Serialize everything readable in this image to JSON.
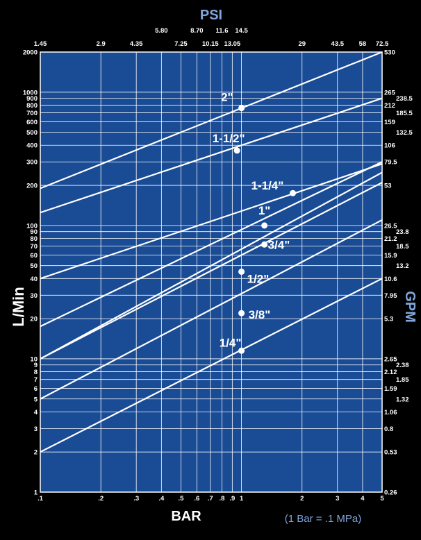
{
  "chart_data": {
    "type": "line",
    "scale": "log-log",
    "grid": true,
    "top_axis": {
      "title": "PSI",
      "ticks": [
        {
          "label": "1.45",
          "bar": 0.1
        },
        {
          "label": "2.9",
          "bar": 0.2
        },
        {
          "label": "4.35",
          "bar": 0.3
        },
        {
          "label": "5.80",
          "bar": 0.4
        },
        {
          "label": "7.25",
          "bar": 0.5
        },
        {
          "label": "8.70",
          "bar": 0.6
        },
        {
          "label": "10.15",
          "bar": 0.7
        },
        {
          "label": "11.6",
          "bar": 0.8
        },
        {
          "label": "13.05",
          "bar": 0.9
        },
        {
          "label": "14.5",
          "bar": 1.0
        },
        {
          "label": "29",
          "bar": 2
        },
        {
          "label": "43.5",
          "bar": 3
        },
        {
          "label": "58",
          "bar": 4
        },
        {
          "label": "72.5",
          "bar": 5
        }
      ]
    },
    "bottom_axis": {
      "title": "BAR",
      "note": "(1 Bar = .1 MPa)",
      "range": [
        0.1,
        5
      ],
      "ticks": [
        {
          "label": ".1",
          "value": 0.1
        },
        {
          "label": ".2",
          "value": 0.2
        },
        {
          "label": ".3",
          "value": 0.3
        },
        {
          "label": ".4",
          "value": 0.4
        },
        {
          "label": ".5",
          "value": 0.5
        },
        {
          "label": ".6",
          "value": 0.6
        },
        {
          "label": ".7",
          "value": 0.7
        },
        {
          "label": ".8",
          "value": 0.8
        },
        {
          "label": ".9",
          "value": 0.9
        },
        {
          "label": "1",
          "value": 1
        },
        {
          "label": "2",
          "value": 2
        },
        {
          "label": "3",
          "value": 3
        },
        {
          "label": "4",
          "value": 4
        },
        {
          "label": "5",
          "value": 5
        }
      ]
    },
    "left_axis": {
      "title": "L/Min",
      "range": [
        1,
        2000
      ],
      "ticks": [
        {
          "label": "1",
          "value": 1
        },
        {
          "label": "2",
          "value": 2
        },
        {
          "label": "3",
          "value": 3
        },
        {
          "label": "4",
          "value": 4
        },
        {
          "label": "5",
          "value": 5
        },
        {
          "label": "6",
          "value": 6
        },
        {
          "label": "7",
          "value": 7
        },
        {
          "label": "8",
          "value": 8
        },
        {
          "label": "9",
          "value": 9
        },
        {
          "label": "10",
          "value": 10
        },
        {
          "label": "20",
          "value": 20
        },
        {
          "label": "30",
          "value": 30
        },
        {
          "label": "40",
          "value": 40
        },
        {
          "label": "50",
          "value": 50
        },
        {
          "label": "60",
          "value": 60
        },
        {
          "label": "70",
          "value": 70
        },
        {
          "label": "80",
          "value": 80
        },
        {
          "label": "90",
          "value": 90
        },
        {
          "label": "100",
          "value": 100
        },
        {
          "label": "200",
          "value": 200
        },
        {
          "label": "300",
          "value": 300
        },
        {
          "label": "400",
          "value": 400
        },
        {
          "label": "500",
          "value": 500
        },
        {
          "label": "600",
          "value": 600
        },
        {
          "label": "700",
          "value": 700
        },
        {
          "label": "800",
          "value": 800
        },
        {
          "label": "900",
          "value": 900
        },
        {
          "label": "1000",
          "value": 1000
        },
        {
          "label": "2000",
          "value": 2000
        }
      ]
    },
    "right_axis": {
      "title": "GPM",
      "ticks": [
        {
          "label": "530",
          "lmin": 2000
        },
        {
          "label": "265",
          "lmin": 1000
        },
        {
          "label": "238.5",
          "lmin": 900
        },
        {
          "label": "212",
          "lmin": 800
        },
        {
          "label": "185.5",
          "lmin": 700
        },
        {
          "label": "159",
          "lmin": 600
        },
        {
          "label": "132.5",
          "lmin": 500
        },
        {
          "label": "106",
          "lmin": 400
        },
        {
          "label": "79.5",
          "lmin": 300
        },
        {
          "label": "53",
          "lmin": 200
        },
        {
          "label": "26.5",
          "lmin": 100
        },
        {
          "label": "23.8",
          "lmin": 90
        },
        {
          "label": "21.2",
          "lmin": 80
        },
        {
          "label": "18.5",
          "lmin": 70
        },
        {
          "label": "15.9",
          "lmin": 60
        },
        {
          "label": "13.2",
          "lmin": 50
        },
        {
          "label": "10.6",
          "lmin": 40
        },
        {
          "label": "7.95",
          "lmin": 30
        },
        {
          "label": "5.3",
          "lmin": 20
        },
        {
          "label": "2.65",
          "lmin": 10
        },
        {
          "label": "2.38",
          "lmin": 9
        },
        {
          "label": "2.12",
          "lmin": 8
        },
        {
          "label": "1.85",
          "lmin": 7
        },
        {
          "label": "1.59",
          "lmin": 6
        },
        {
          "label": "1.32",
          "lmin": 5
        },
        {
          "label": "1.06",
          "lmin": 4
        },
        {
          "label": "0.8",
          "lmin": 3
        },
        {
          "label": "0.53",
          "lmin": 2
        },
        {
          "label": "0.26",
          "lmin": 1
        }
      ]
    },
    "series": [
      {
        "name": "2\"",
        "x": [
          0.1,
          5
        ],
        "y": [
          190,
          2000
        ],
        "marker": {
          "x": 1.0,
          "y": 760
        }
      },
      {
        "name": "1-1/2\"",
        "x": [
          0.1,
          5
        ],
        "y": [
          125,
          900
        ],
        "marker": {
          "x": 0.95,
          "y": 365
        }
      },
      {
        "name": "1-1/4\"",
        "x": [
          0.1,
          5
        ],
        "y": [
          40,
          290
        ],
        "marker": {
          "x": 1.8,
          "y": 175
        }
      },
      {
        "name": "1\"",
        "x": [
          0.1,
          5
        ],
        "y": [
          17.5,
          300
        ],
        "marker": {
          "x": 1.3,
          "y": 100
        }
      },
      {
        "name": "3/4\"",
        "x": [
          0.1,
          5
        ],
        "y": [
          10,
          250
        ],
        "marker": {
          "x": 1.3,
          "y": 72
        }
      },
      {
        "name": "1/2\"",
        "x": [
          0.1,
          5
        ],
        "y": [
          10,
          210
        ],
        "marker": {
          "x": 1.0,
          "y": 45
        }
      },
      {
        "name": "3/8\"",
        "x": [
          0.1,
          5
        ],
        "y": [
          5,
          110
        ],
        "marker": {
          "x": 1.0,
          "y": 22
        }
      },
      {
        "name": "1/4\"",
        "x": [
          0.1,
          5
        ],
        "y": [
          2,
          40
        ],
        "marker": {
          "x": 1.0,
          "y": 11.5
        }
      }
    ]
  }
}
